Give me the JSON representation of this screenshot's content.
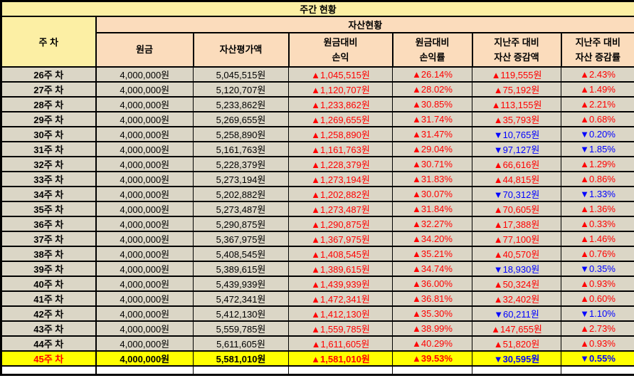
{
  "colors": {
    "header_yellow": "#FCEFA4",
    "header_peach": "#FBDCBC",
    "row_background": "#DBD6C6",
    "highlight_background": "#FFFF00",
    "gain_red": "#FF0000",
    "loss_blue": "#0000FF",
    "border_black": "#000000"
  },
  "chart_data": {
    "type": "table",
    "title": "주간 현황",
    "week_header": "주 차",
    "group_header": "자산현황",
    "columns": [
      [
        "원금"
      ],
      [
        "자산평가액"
      ],
      [
        "원금대비",
        "손익"
      ],
      [
        "원금대비",
        "손익률"
      ],
      [
        "지난주 대비",
        "자산 증감액"
      ],
      [
        "지난주 대비",
        "자산 증감률"
      ]
    ],
    "rows": [
      {
        "week": "26주 차",
        "principal": "4,000,000원",
        "valuation": "5,045,515원",
        "profit_loss": "▲1,045,515원",
        "profit_loss_rate": "▲26.14%",
        "wow_change": "▲119,555원",
        "wow_change_rate": "▲2.43%",
        "highlight": false
      },
      {
        "week": "27주 차",
        "principal": "4,000,000원",
        "valuation": "5,120,707원",
        "profit_loss": "▲1,120,707원",
        "profit_loss_rate": "▲28.02%",
        "wow_change": "▲75,192원",
        "wow_change_rate": "▲1.49%",
        "highlight": false
      },
      {
        "week": "28주 차",
        "principal": "4,000,000원",
        "valuation": "5,233,862원",
        "profit_loss": "▲1,233,862원",
        "profit_loss_rate": "▲30.85%",
        "wow_change": "▲113,155원",
        "wow_change_rate": "▲2.21%",
        "highlight": false
      },
      {
        "week": "29주 차",
        "principal": "4,000,000원",
        "valuation": "5,269,655원",
        "profit_loss": "▲1,269,655원",
        "profit_loss_rate": "▲31.74%",
        "wow_change": "▲35,793원",
        "wow_change_rate": "▲0.68%",
        "highlight": false
      },
      {
        "week": "30주 차",
        "principal": "4,000,000원",
        "valuation": "5,258,890원",
        "profit_loss": "▲1,258,890원",
        "profit_loss_rate": "▲31.47%",
        "wow_change": "▼10,765원",
        "wow_change_rate": "▼0.20%",
        "highlight": false
      },
      {
        "week": "31주 차",
        "principal": "4,000,000원",
        "valuation": "5,161,763원",
        "profit_loss": "▲1,161,763원",
        "profit_loss_rate": "▲29.04%",
        "wow_change": "▼97,127원",
        "wow_change_rate": "▼1.85%",
        "highlight": false
      },
      {
        "week": "32주 차",
        "principal": "4,000,000원",
        "valuation": "5,228,379원",
        "profit_loss": "▲1,228,379원",
        "profit_loss_rate": "▲30.71%",
        "wow_change": "▲66,616원",
        "wow_change_rate": "▲1.29%",
        "highlight": false
      },
      {
        "week": "33주 차",
        "principal": "4,000,000원",
        "valuation": "5,273,194원",
        "profit_loss": "▲1,273,194원",
        "profit_loss_rate": "▲31.83%",
        "wow_change": "▲44,815원",
        "wow_change_rate": "▲0.86%",
        "highlight": false
      },
      {
        "week": "34주 차",
        "principal": "4,000,000원",
        "valuation": "5,202,882원",
        "profit_loss": "▲1,202,882원",
        "profit_loss_rate": "▲30.07%",
        "wow_change": "▼70,312원",
        "wow_change_rate": "▼1.33%",
        "highlight": false
      },
      {
        "week": "35주 차",
        "principal": "4,000,000원",
        "valuation": "5,273,487원",
        "profit_loss": "▲1,273,487원",
        "profit_loss_rate": "▲31.84%",
        "wow_change": "▲70,605원",
        "wow_change_rate": "▲1.36%",
        "highlight": false
      },
      {
        "week": "36주 차",
        "principal": "4,000,000원",
        "valuation": "5,290,875원",
        "profit_loss": "▲1,290,875원",
        "profit_loss_rate": "▲32.27%",
        "wow_change": "▲17,388원",
        "wow_change_rate": "▲0.33%",
        "highlight": false
      },
      {
        "week": "37주 차",
        "principal": "4,000,000원",
        "valuation": "5,367,975원",
        "profit_loss": "▲1,367,975원",
        "profit_loss_rate": "▲34.20%",
        "wow_change": "▲77,100원",
        "wow_change_rate": "▲1.46%",
        "highlight": false
      },
      {
        "week": "38주 차",
        "principal": "4,000,000원",
        "valuation": "5,408,545원",
        "profit_loss": "▲1,408,545원",
        "profit_loss_rate": "▲35.21%",
        "wow_change": "▲40,570원",
        "wow_change_rate": "▲0.76%",
        "highlight": false
      },
      {
        "week": "39주 차",
        "principal": "4,000,000원",
        "valuation": "5,389,615원",
        "profit_loss": "▲1,389,615원",
        "profit_loss_rate": "▲34.74%",
        "wow_change": "▼18,930원",
        "wow_change_rate": "▼0.35%",
        "highlight": false
      },
      {
        "week": "40주 차",
        "principal": "4,000,000원",
        "valuation": "5,439,939원",
        "profit_loss": "▲1,439,939원",
        "profit_loss_rate": "▲36.00%",
        "wow_change": "▲50,324원",
        "wow_change_rate": "▲0.93%",
        "highlight": false
      },
      {
        "week": "41주 차",
        "principal": "4,000,000원",
        "valuation": "5,472,341원",
        "profit_loss": "▲1,472,341원",
        "profit_loss_rate": "▲36.81%",
        "wow_change": "▲32,402원",
        "wow_change_rate": "▲0.60%",
        "highlight": false
      },
      {
        "week": "42주 차",
        "principal": "4,000,000원",
        "valuation": "5,412,130원",
        "profit_loss": "▲1,412,130원",
        "profit_loss_rate": "▲35.30%",
        "wow_change": "▼60,211원",
        "wow_change_rate": "▼1.10%",
        "highlight": false
      },
      {
        "week": "43주 차",
        "principal": "4,000,000원",
        "valuation": "5,559,785원",
        "profit_loss": "▲1,559,785원",
        "profit_loss_rate": "▲38.99%",
        "wow_change": "▲147,655원",
        "wow_change_rate": "▲2.73%",
        "highlight": false
      },
      {
        "week": "44주 차",
        "principal": "4,000,000원",
        "valuation": "5,611,605원",
        "profit_loss": "▲1,611,605원",
        "profit_loss_rate": "▲40.29%",
        "wow_change": "▲51,820원",
        "wow_change_rate": "▲0.93%",
        "highlight": false
      },
      {
        "week": "45주 차",
        "principal": "4,000,000원",
        "valuation": "5,581,010원",
        "profit_loss": "▲1,581,010원",
        "profit_loss_rate": "▲39.53%",
        "wow_change": "▼30,595원",
        "wow_change_rate": "▼0.55%",
        "highlight": true
      }
    ]
  }
}
